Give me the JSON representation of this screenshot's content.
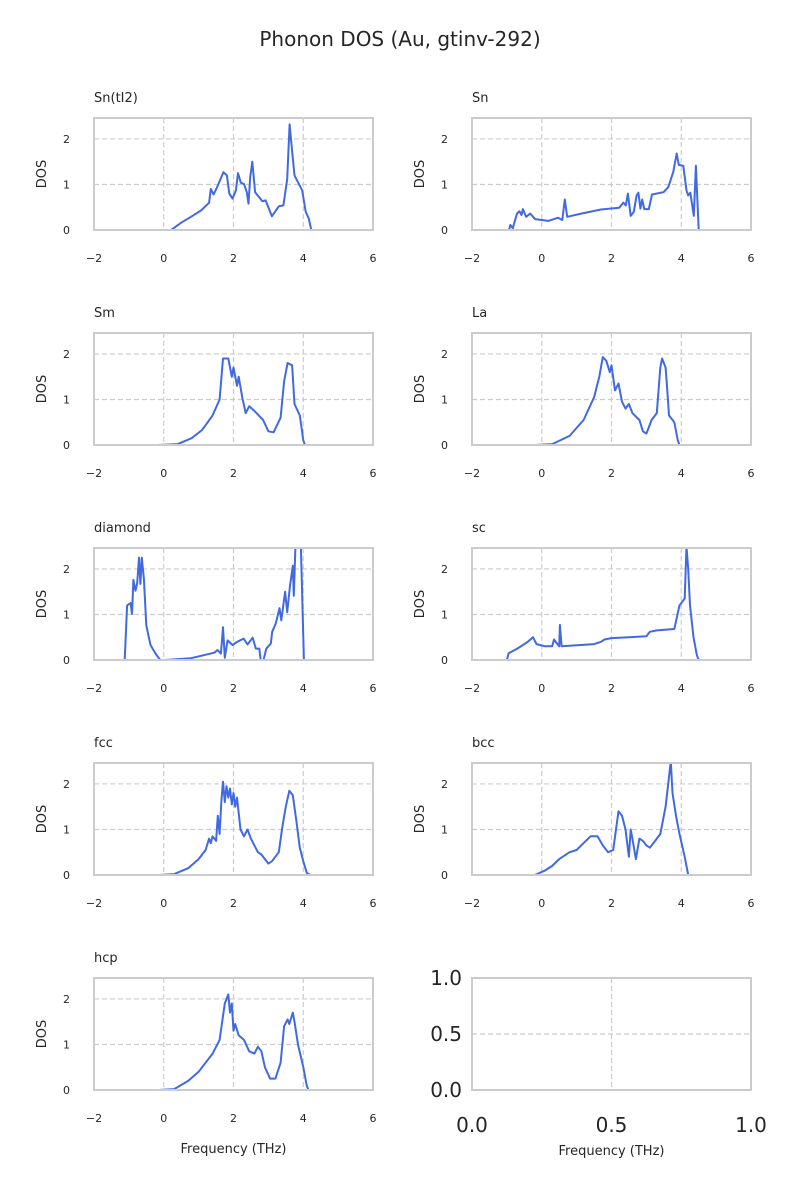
{
  "chart_data": {
    "title": "Phonon DOS (Au, gtinv-292)",
    "type": "line",
    "line_color": "#4169e1",
    "grid": true,
    "panels": [
      {
        "title": "Sn(tI2)",
        "xlabel": "",
        "ylabel": "DOS",
        "xlim": [
          -2,
          6
        ],
        "ylim": [
          0,
          2.46
        ],
        "xticks": [
          "−2",
          "0",
          "2",
          "4",
          "6"
        ],
        "yticks": [
          "0",
          "1",
          "2"
        ],
        "x": [
          -0.74,
          0.21,
          0.5,
          0.78,
          1.07,
          1.3,
          1.35,
          1.43,
          1.54,
          1.71,
          1.81,
          1.88,
          1.97,
          2.07,
          2.13,
          2.21,
          2.3,
          2.38,
          2.43,
          2.48,
          2.54,
          2.62,
          2.83,
          2.92,
          3.1,
          3.3,
          3.43,
          3.54,
          3.61,
          3.69,
          3.75,
          3.97,
          4.07,
          4.16,
          4.23,
          4.69
        ],
        "y": [
          0,
          0,
          0.16,
          0.29,
          0.43,
          0.6,
          0.9,
          0.78,
          0.96,
          1.27,
          1.2,
          0.8,
          0.69,
          0.87,
          1.25,
          1.04,
          1.01,
          0.83,
          0.58,
          1.16,
          1.5,
          0.83,
          0.63,
          0.65,
          0.3,
          0.52,
          0.54,
          1.12,
          2.32,
          1.67,
          1.2,
          0.87,
          0.4,
          0.25,
          0,
          0
        ]
      },
      {
        "title": "Sn",
        "xlabel": "",
        "ylabel": "DOS",
        "xlim": [
          -2,
          6
        ],
        "ylim": [
          0,
          2.46
        ],
        "xticks": [
          "−2",
          "0",
          "2",
          "4",
          "6"
        ],
        "yticks": [
          "0",
          "1",
          "2"
        ],
        "x": [
          -1.51,
          -0.94,
          -0.9,
          -0.83,
          -0.71,
          -0.64,
          -0.58,
          -0.54,
          -0.45,
          -0.33,
          -0.19,
          0.19,
          0.47,
          0.59,
          0.66,
          0.73,
          1.13,
          1.7,
          2.22,
          2.34,
          2.41,
          2.47,
          2.55,
          2.64,
          2.72,
          2.77,
          2.83,
          2.88,
          2.94,
          3.07,
          3.16,
          3.49,
          3.63,
          3.77,
          3.87,
          3.93,
          4.06,
          4.15,
          4.2,
          4.26,
          4.36,
          4.42,
          4.5,
          5.0
        ],
        "y": [
          0,
          0,
          0.11,
          0.04,
          0.36,
          0.41,
          0.33,
          0.46,
          0.29,
          0.36,
          0.24,
          0.2,
          0.27,
          0.22,
          0.67,
          0.29,
          0.36,
          0.45,
          0.49,
          0.6,
          0.54,
          0.8,
          0.31,
          0.4,
          0.76,
          0.82,
          0.47,
          0.67,
          0.46,
          0.46,
          0.78,
          0.83,
          0.94,
          1.27,
          1.68,
          1.43,
          1.41,
          0.87,
          0.76,
          0.82,
          0.31,
          1.41,
          0,
          0
        ]
      },
      {
        "title": "Sm",
        "xlabel": "",
        "ylabel": "DOS",
        "xlim": [
          -2,
          6
        ],
        "ylim": [
          0,
          2.46
        ],
        "xticks": [
          "−2",
          "0",
          "2",
          "4",
          "6"
        ],
        "yticks": [
          "0",
          "1",
          "2"
        ],
        "x": [
          -0.17,
          0.4,
          0.8,
          1.1,
          1.4,
          1.6,
          1.7,
          1.85,
          1.95,
          2.0,
          2.1,
          2.15,
          2.25,
          2.35,
          2.45,
          2.6,
          2.85,
          3.0,
          3.15,
          3.35,
          3.45,
          3.55,
          3.68,
          3.75,
          3.9,
          4.0,
          4.05,
          4.5
        ],
        "y": [
          0,
          0.02,
          0.15,
          0.33,
          0.65,
          1.0,
          1.9,
          1.9,
          1.5,
          1.7,
          1.3,
          1.5,
          1.05,
          0.7,
          0.85,
          0.75,
          0.55,
          0.3,
          0.28,
          0.6,
          1.4,
          1.8,
          1.75,
          0.9,
          0.65,
          0.1,
          0,
          0
        ]
      },
      {
        "title": "La",
        "xlabel": "",
        "ylabel": "DOS",
        "xlim": [
          -2,
          6
        ],
        "ylim": [
          0,
          2.46
        ],
        "xticks": [
          "−2",
          "0",
          "2",
          "4",
          "6"
        ],
        "yticks": [
          "0",
          "1",
          "2"
        ],
        "x": [
          -0.2,
          0.3,
          0.8,
          1.2,
          1.5,
          1.65,
          1.75,
          1.85,
          1.95,
          2.0,
          2.1,
          2.2,
          2.3,
          2.4,
          2.5,
          2.6,
          2.8,
          2.9,
          3.0,
          3.15,
          3.3,
          3.4,
          3.45,
          3.55,
          3.6,
          3.65,
          3.8,
          3.9,
          3.95,
          4.5
        ],
        "y": [
          0,
          0.02,
          0.2,
          0.55,
          1.05,
          1.5,
          1.93,
          1.85,
          1.6,
          1.75,
          1.2,
          1.35,
          0.95,
          0.8,
          0.9,
          0.7,
          0.55,
          0.3,
          0.25,
          0.55,
          0.7,
          1.7,
          1.9,
          1.7,
          1.2,
          0.65,
          0.5,
          0.1,
          0,
          0
        ]
      },
      {
        "title": "diamond",
        "xlabel": "",
        "ylabel": "DOS",
        "xlim": [
          -2,
          6
        ],
        "ylim": [
          0,
          2.46
        ],
        "xticks": [
          "−2",
          "0",
          "2",
          "4",
          "6"
        ],
        "yticks": [
          "0",
          "1",
          "2"
        ],
        "x": [
          -1.65,
          -1.12,
          -1.05,
          -0.95,
          -0.91,
          -0.87,
          -0.81,
          -0.76,
          -0.71,
          -0.67,
          -0.63,
          -0.57,
          -0.5,
          -0.38,
          -0.22,
          -0.1,
          0.02,
          0.78,
          1.45,
          1.54,
          1.64,
          1.7,
          1.75,
          1.83,
          1.97,
          2.11,
          2.29,
          2.4,
          2.55,
          2.64,
          2.74,
          2.78,
          2.86,
          2.94,
          3.07,
          3.11,
          3.21,
          3.32,
          3.37,
          3.48,
          3.54,
          3.62,
          3.7,
          3.73,
          3.79,
          3.92,
          4.02,
          4.54
        ],
        "y": [
          0,
          0,
          1.2,
          1.25,
          1.01,
          1.76,
          1.52,
          1.69,
          2.25,
          1.67,
          2.25,
          1.78,
          0.76,
          0.33,
          0.12,
          0,
          0,
          0.04,
          0.16,
          0.22,
          0.14,
          0.72,
          0.05,
          0.43,
          0.33,
          0.4,
          0.47,
          0.34,
          0.49,
          0.25,
          0.25,
          0,
          0,
          0.25,
          0.36,
          0.62,
          0.8,
          1.14,
          0.87,
          1.5,
          1.05,
          1.63,
          2.07,
          1.41,
          2.8,
          2.8,
          0,
          0
        ]
      },
      {
        "title": "sc",
        "xlabel": "",
        "ylabel": "DOS",
        "xlim": [
          -2,
          6
        ],
        "ylim": [
          0,
          2.46
        ],
        "xticks": [
          "−2",
          "0",
          "2",
          "4",
          "6"
        ],
        "yticks": [
          "0",
          "1",
          "2"
        ],
        "x": [
          -1.6,
          -1.0,
          -0.95,
          -0.7,
          -0.4,
          -0.25,
          -0.15,
          0.1,
          0.3,
          0.35,
          0.45,
          0.5,
          0.52,
          0.57,
          1.5,
          1.7,
          1.8,
          2.0,
          2.5,
          3.0,
          3.1,
          3.3,
          3.8,
          3.85,
          3.95,
          4.05,
          4.1,
          4.15,
          4.2,
          4.25,
          4.35,
          4.45,
          4.5,
          5.0
        ],
        "y": [
          0,
          0,
          0.15,
          0.25,
          0.4,
          0.5,
          0.35,
          0.3,
          0.3,
          0.45,
          0.35,
          0.3,
          0.77,
          0.3,
          0.35,
          0.4,
          0.45,
          0.48,
          0.5,
          0.52,
          0.62,
          0.65,
          0.68,
          0.85,
          1.2,
          1.3,
          1.35,
          2.5,
          2.0,
          1.2,
          0.5,
          0.1,
          0,
          0
        ]
      },
      {
        "title": "fcc",
        "xlabel": "",
        "ylabel": "DOS",
        "xlim": [
          -2,
          6
        ],
        "ylim": [
          0,
          2.46
        ],
        "xticks": [
          "−2",
          "0",
          "2",
          "4",
          "6"
        ],
        "yticks": [
          "0",
          "1",
          "2"
        ],
        "x": [
          -0.15,
          0.3,
          0.7,
          1.0,
          1.2,
          1.3,
          1.35,
          1.4,
          1.5,
          1.55,
          1.6,
          1.65,
          1.7,
          1.75,
          1.8,
          1.85,
          1.9,
          1.95,
          2.0,
          2.05,
          2.1,
          2.2,
          2.3,
          2.4,
          2.5,
          2.6,
          2.7,
          2.8,
          2.9,
          3.0,
          3.1,
          3.3,
          3.4,
          3.5,
          3.6,
          3.7,
          3.8,
          3.9,
          4.0,
          4.1,
          4.2,
          4.5
        ],
        "y": [
          0,
          0.02,
          0.15,
          0.35,
          0.55,
          0.8,
          0.7,
          0.85,
          0.75,
          1.3,
          0.9,
          1.6,
          2.05,
          1.6,
          1.95,
          1.7,
          1.9,
          1.55,
          1.8,
          1.5,
          1.7,
          1.0,
          0.85,
          1.0,
          0.8,
          0.65,
          0.5,
          0.45,
          0.35,
          0.25,
          0.3,
          0.5,
          1.05,
          1.5,
          1.85,
          1.75,
          1.2,
          0.6,
          0.3,
          0.05,
          0,
          0
        ]
      },
      {
        "title": "bcc",
        "xlabel": "",
        "ylabel": "DOS",
        "xlim": [
          -2,
          6
        ],
        "ylim": [
          0,
          2.46
        ],
        "xticks": [
          "−2",
          "0",
          "2",
          "4",
          "6"
        ],
        "yticks": [
          "0",
          "1",
          "2"
        ],
        "x": [
          -0.7,
          -0.2,
          0.1,
          0.3,
          0.5,
          0.8,
          1.0,
          1.2,
          1.4,
          1.6,
          1.75,
          1.9,
          2.05,
          2.2,
          2.3,
          2.4,
          2.5,
          2.55,
          2.6,
          2.7,
          2.8,
          2.9,
          3.0,
          3.1,
          3.2,
          3.4,
          3.55,
          3.7,
          3.75,
          3.85,
          3.95,
          4.1,
          4.2,
          4.5
        ],
        "y": [
          0,
          0,
          0.1,
          0.2,
          0.35,
          0.5,
          0.55,
          0.7,
          0.85,
          0.85,
          0.65,
          0.5,
          0.55,
          1.4,
          1.3,
          1.0,
          0.4,
          1.0,
          0.8,
          0.35,
          0.8,
          0.75,
          0.65,
          0.6,
          0.7,
          0.9,
          1.5,
          2.5,
          1.8,
          1.3,
          0.9,
          0.4,
          0,
          0
        ]
      },
      {
        "title": "hcp",
        "xlabel": "Frequency (THz)",
        "ylabel": "DOS",
        "xlim": [
          -2,
          6
        ],
        "ylim": [
          0,
          2.46
        ],
        "xticks": [
          "−2",
          "0",
          "2",
          "4",
          "6"
        ],
        "yticks": [
          "0",
          "1",
          "2"
        ],
        "x": [
          -0.15,
          0.3,
          0.7,
          1.0,
          1.2,
          1.4,
          1.6,
          1.75,
          1.85,
          1.9,
          1.95,
          2.0,
          2.05,
          2.15,
          2.3,
          2.45,
          2.6,
          2.7,
          2.8,
          2.9,
          3.05,
          3.2,
          3.35,
          3.45,
          3.55,
          3.6,
          3.7,
          3.75,
          3.85,
          4.0,
          4.1,
          4.15,
          4.5
        ],
        "y": [
          0,
          0.02,
          0.2,
          0.4,
          0.6,
          0.8,
          1.1,
          1.9,
          2.1,
          1.7,
          1.9,
          1.3,
          1.45,
          1.2,
          1.1,
          0.85,
          0.8,
          0.95,
          0.85,
          0.5,
          0.25,
          0.25,
          0.6,
          1.4,
          1.55,
          1.45,
          1.7,
          1.5,
          1.0,
          0.5,
          0.1,
          0,
          0
        ]
      },
      {
        "title": "",
        "xlabel": "Frequency (THz)",
        "ylabel": "",
        "xlim": [
          0,
          1
        ],
        "ylim": [
          0,
          1
        ],
        "xticks": [
          "0.0",
          "0.5",
          "1.0"
        ],
        "yticks": [
          "0.0",
          "0.5",
          "1.0"
        ],
        "empty": true,
        "x": [],
        "y": []
      }
    ]
  }
}
